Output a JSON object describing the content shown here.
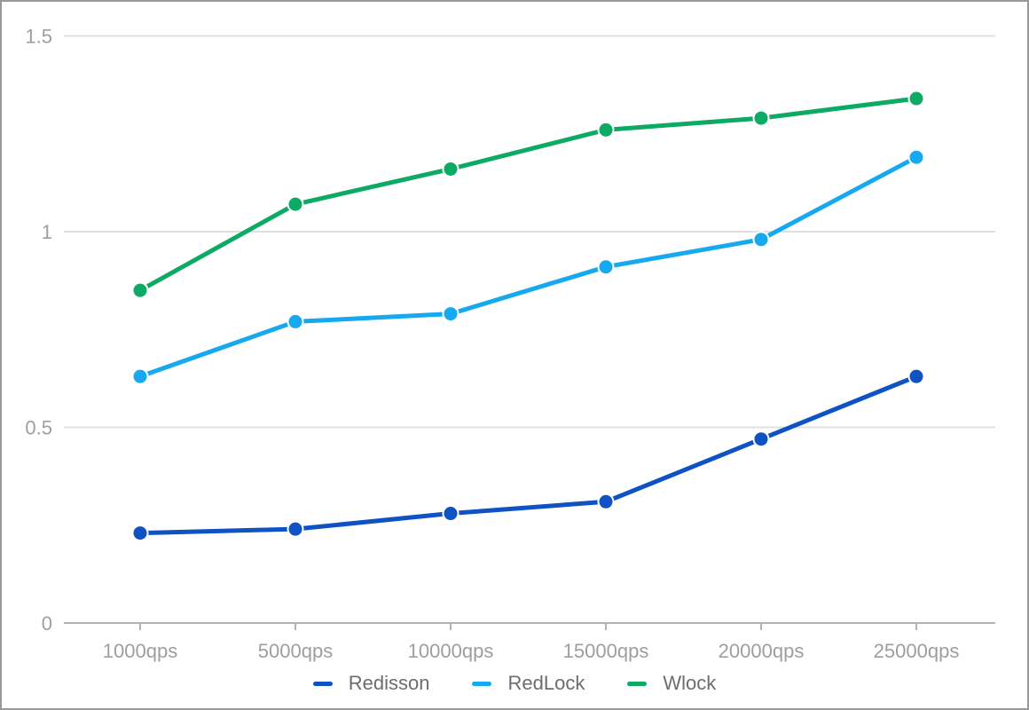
{
  "page": {
    "background": "#ffffff",
    "border_color": "#999999"
  },
  "chart_data": {
    "type": "line",
    "title": "",
    "xlabel": "",
    "ylabel": "",
    "categories": [
      "1000qps",
      "5000qps",
      "10000qps",
      "15000qps",
      "20000qps",
      "25000qps"
    ],
    "series": [
      {
        "name": "Redisson",
        "color": "#0e52c4",
        "values": [
          0.23,
          0.24,
          0.28,
          0.31,
          0.47,
          0.63
        ]
      },
      {
        "name": "RedLock",
        "color": "#16a9f0",
        "values": [
          0.63,
          0.77,
          0.79,
          0.91,
          0.98,
          1.19
        ]
      },
      {
        "name": "Wlock",
        "color": "#0caa64",
        "values": [
          0.85,
          1.07,
          1.16,
          1.26,
          1.29,
          1.34
        ]
      }
    ],
    "ylim": [
      0,
      1.5
    ],
    "yticks": [
      0,
      0.5,
      1,
      1.5
    ],
    "ytick_labels": [
      "0",
      "0.5",
      "1",
      "1.5"
    ],
    "grid": true,
    "legend_position": "bottom",
    "colors": {
      "gridline": "#e0e0e0",
      "axis_line": "#b3b3b3",
      "tick_mark": "#b3b3b3",
      "axis_label": "#9e9e9e",
      "legend_label": "#6d6d6d"
    }
  }
}
